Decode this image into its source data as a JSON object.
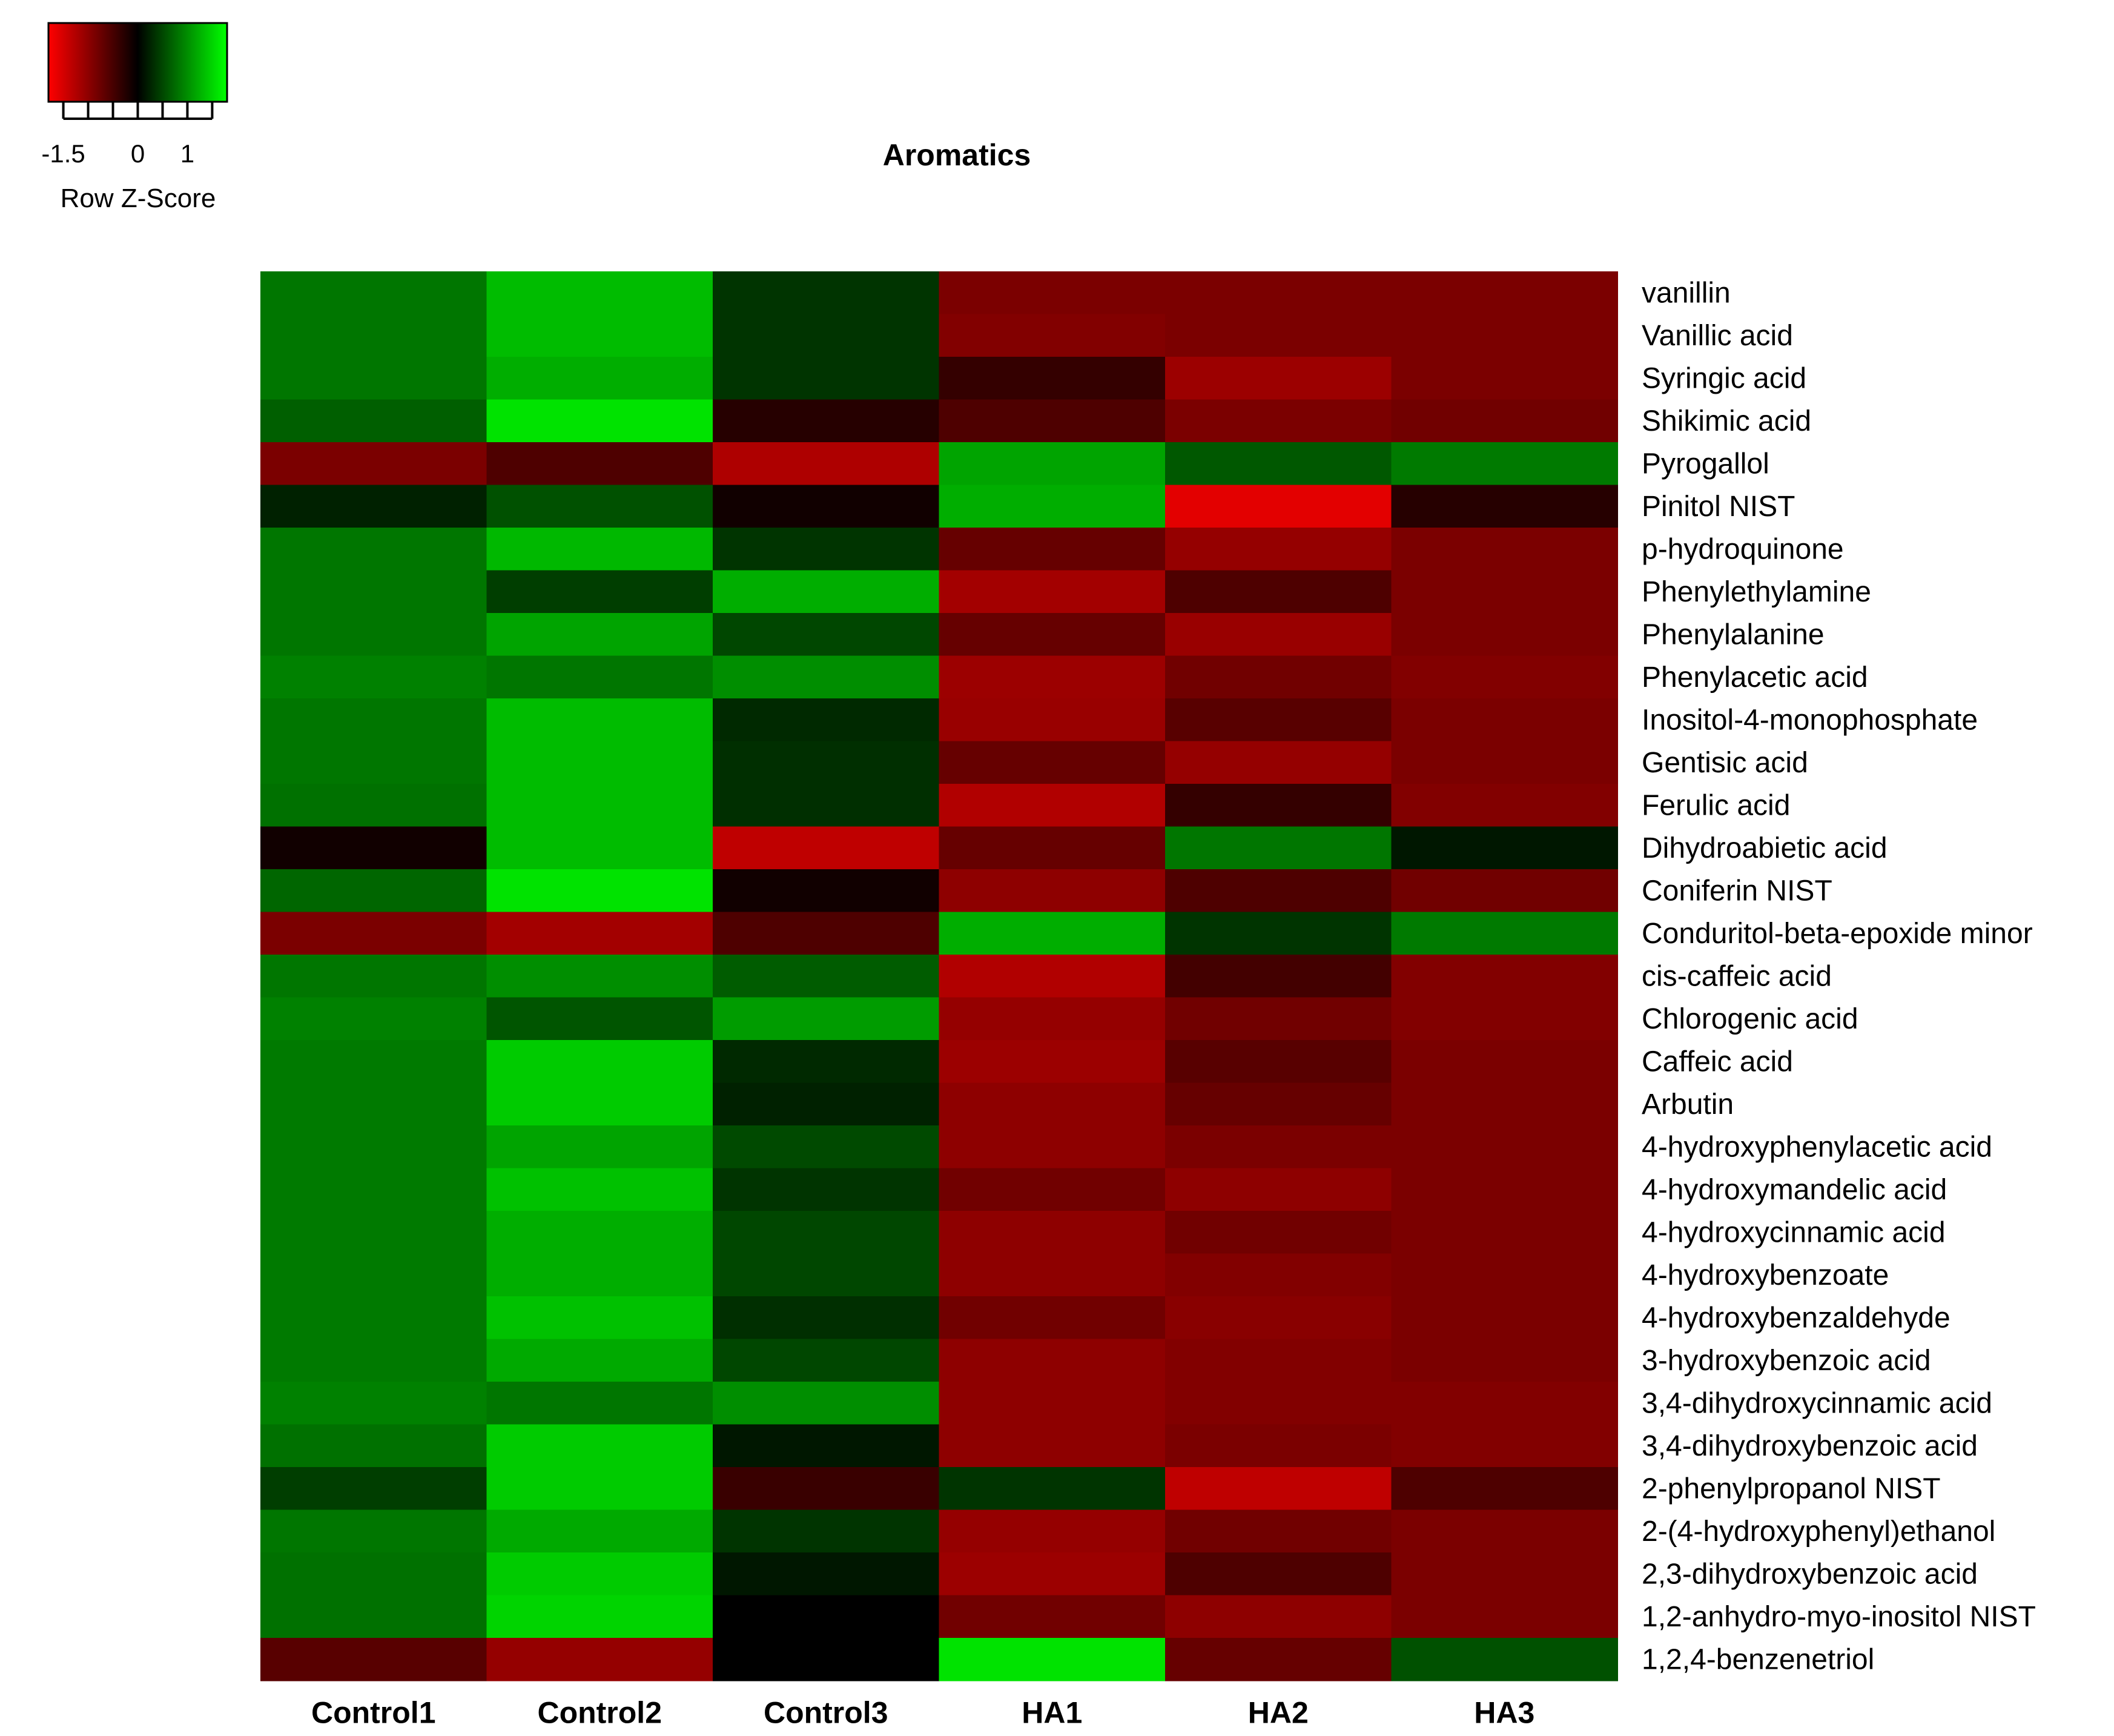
{
  "chart_data": {
    "type": "heatmap",
    "title": "Aromatics",
    "xlabel": "",
    "ylabel": "",
    "columns": [
      "Control1",
      "Control2",
      "Control3",
      "HA1",
      "HA2",
      "HA3"
    ],
    "rows": [
      "vanillin",
      "Vanillic acid",
      "Syringic acid",
      "Shikimic acid",
      "Pyrogallol",
      "Pinitol NIST",
      "p-hydroquinone",
      "Phenylethylamine",
      "Phenylalanine",
      "Phenylacetic acid",
      "Inositol-4-monophosphate",
      "Gentisic acid",
      "Ferulic acid",
      "Dihydroabietic acid",
      "Coniferin NIST",
      "Conduritol-beta-epoxide minor",
      "cis-caffeic acid",
      "Chlorogenic acid",
      "Caffeic acid",
      "Arbutin",
      "4-hydroxyphenylacetic acid",
      "4-hydroxymandelic acid",
      "4-hydroxycinnamic acid",
      "4-hydroxybenzoate",
      "4-hydroxybenzaldehyde",
      "3-hydroxybenzoic acid",
      "3,4-dihydroxycinnamic acid",
      "3,4-dihydroxybenzoic acid",
      "2-phenylpropanol NIST",
      "2-(4-hydroxyphenyl)ethanol",
      "2,3-dihydroxybenzoic acid",
      "1,2-anhydro-myo-inositol NIST",
      "1,2,4-benzenetriol"
    ],
    "values": [
      [
        0.83,
        1.33,
        0.37,
        -0.87,
        -0.87,
        -0.87
      ],
      [
        0.83,
        1.33,
        0.37,
        -0.92,
        -0.87,
        -0.87
      ],
      [
        0.83,
        1.23,
        0.37,
        -0.37,
        -1.1,
        -0.87
      ],
      [
        0.67,
        1.6,
        -0.27,
        -0.55,
        -0.87,
        -0.8
      ],
      [
        -0.87,
        -0.55,
        -1.23,
        1.16,
        0.62,
        0.86
      ],
      [
        0.23,
        0.57,
        -0.12,
        1.23,
        -1.6,
        -0.27
      ],
      [
        0.83,
        1.3,
        0.37,
        -0.72,
        -1.05,
        -0.87
      ],
      [
        0.83,
        0.44,
        1.23,
        -1.15,
        -0.55,
        -0.87
      ],
      [
        0.83,
        1.16,
        0.5,
        -0.72,
        -1.08,
        -0.87
      ],
      [
        0.91,
        0.83,
        1.0,
        -1.1,
        -0.8,
        -0.92
      ],
      [
        0.83,
        1.33,
        0.29,
        -1.08,
        -0.62,
        -0.87
      ],
      [
        0.83,
        1.33,
        0.33,
        -0.72,
        -1.05,
        -0.87
      ],
      [
        0.8,
        1.33,
        0.33,
        -1.25,
        -0.37,
        -0.92
      ],
      [
        -0.12,
        1.33,
        -1.35,
        -0.72,
        0.83,
        0.16
      ],
      [
        0.72,
        1.6,
        -0.12,
        -1.0,
        -0.55,
        -0.8
      ],
      [
        -0.87,
        -1.15,
        -0.55,
        1.23,
        0.37,
        0.86
      ],
      [
        0.83,
        1.0,
        0.65,
        -1.25,
        -0.47,
        -0.92
      ],
      [
        0.91,
        0.6,
        1.1,
        -1.05,
        -0.8,
        -0.92
      ],
      [
        0.86,
        1.43,
        0.29,
        -1.1,
        -0.62,
        -0.87
      ],
      [
        0.86,
        1.43,
        0.23,
        -1.0,
        -0.72,
        -0.87
      ],
      [
        0.86,
        1.16,
        0.52,
        -1.0,
        -0.87,
        -0.87
      ],
      [
        0.86,
        1.36,
        0.37,
        -0.8,
        -1.0,
        -0.87
      ],
      [
        0.86,
        1.23,
        0.5,
        -1.0,
        -0.8,
        -0.87
      ],
      [
        0.86,
        1.23,
        0.5,
        -1.0,
        -0.92,
        -0.87
      ],
      [
        0.86,
        1.36,
        0.33,
        -0.8,
        -0.97,
        -0.87
      ],
      [
        0.86,
        1.2,
        0.5,
        -1.0,
        -0.92,
        -0.87
      ],
      [
        0.91,
        0.83,
        1.0,
        -1.0,
        -0.92,
        -0.92
      ],
      [
        0.8,
        1.43,
        0.16,
        -1.0,
        -0.87,
        -0.92
      ],
      [
        0.44,
        1.43,
        -0.4,
        0.37,
        -1.35,
        -0.55
      ],
      [
        0.83,
        1.2,
        0.37,
        -1.05,
        -0.8,
        -0.87
      ],
      [
        0.8,
        1.43,
        0.16,
        -1.1,
        -0.55,
        -0.87
      ],
      [
        0.8,
        1.5,
        0.0,
        -0.8,
        -1.0,
        -0.87
      ],
      [
        -0.62,
        -1.05,
        0.0,
        1.6,
        -0.72,
        0.57
      ]
    ],
    "color_scale": {
      "low": "#ff0000",
      "mid": "#000000",
      "high": "#00ff00"
    },
    "vrange": [
      -1.8,
      1.8
    ],
    "legend": {
      "title": "Row Z-Score",
      "tick_labels": [
        "-1.5",
        "0",
        "1"
      ],
      "tick_values": [
        -1.5,
        0,
        1
      ],
      "minor_ticks": [
        -1.5,
        -1.0,
        -0.5,
        0.0,
        0.5,
        1.0,
        1.5
      ],
      "placement": "top-left"
    }
  }
}
